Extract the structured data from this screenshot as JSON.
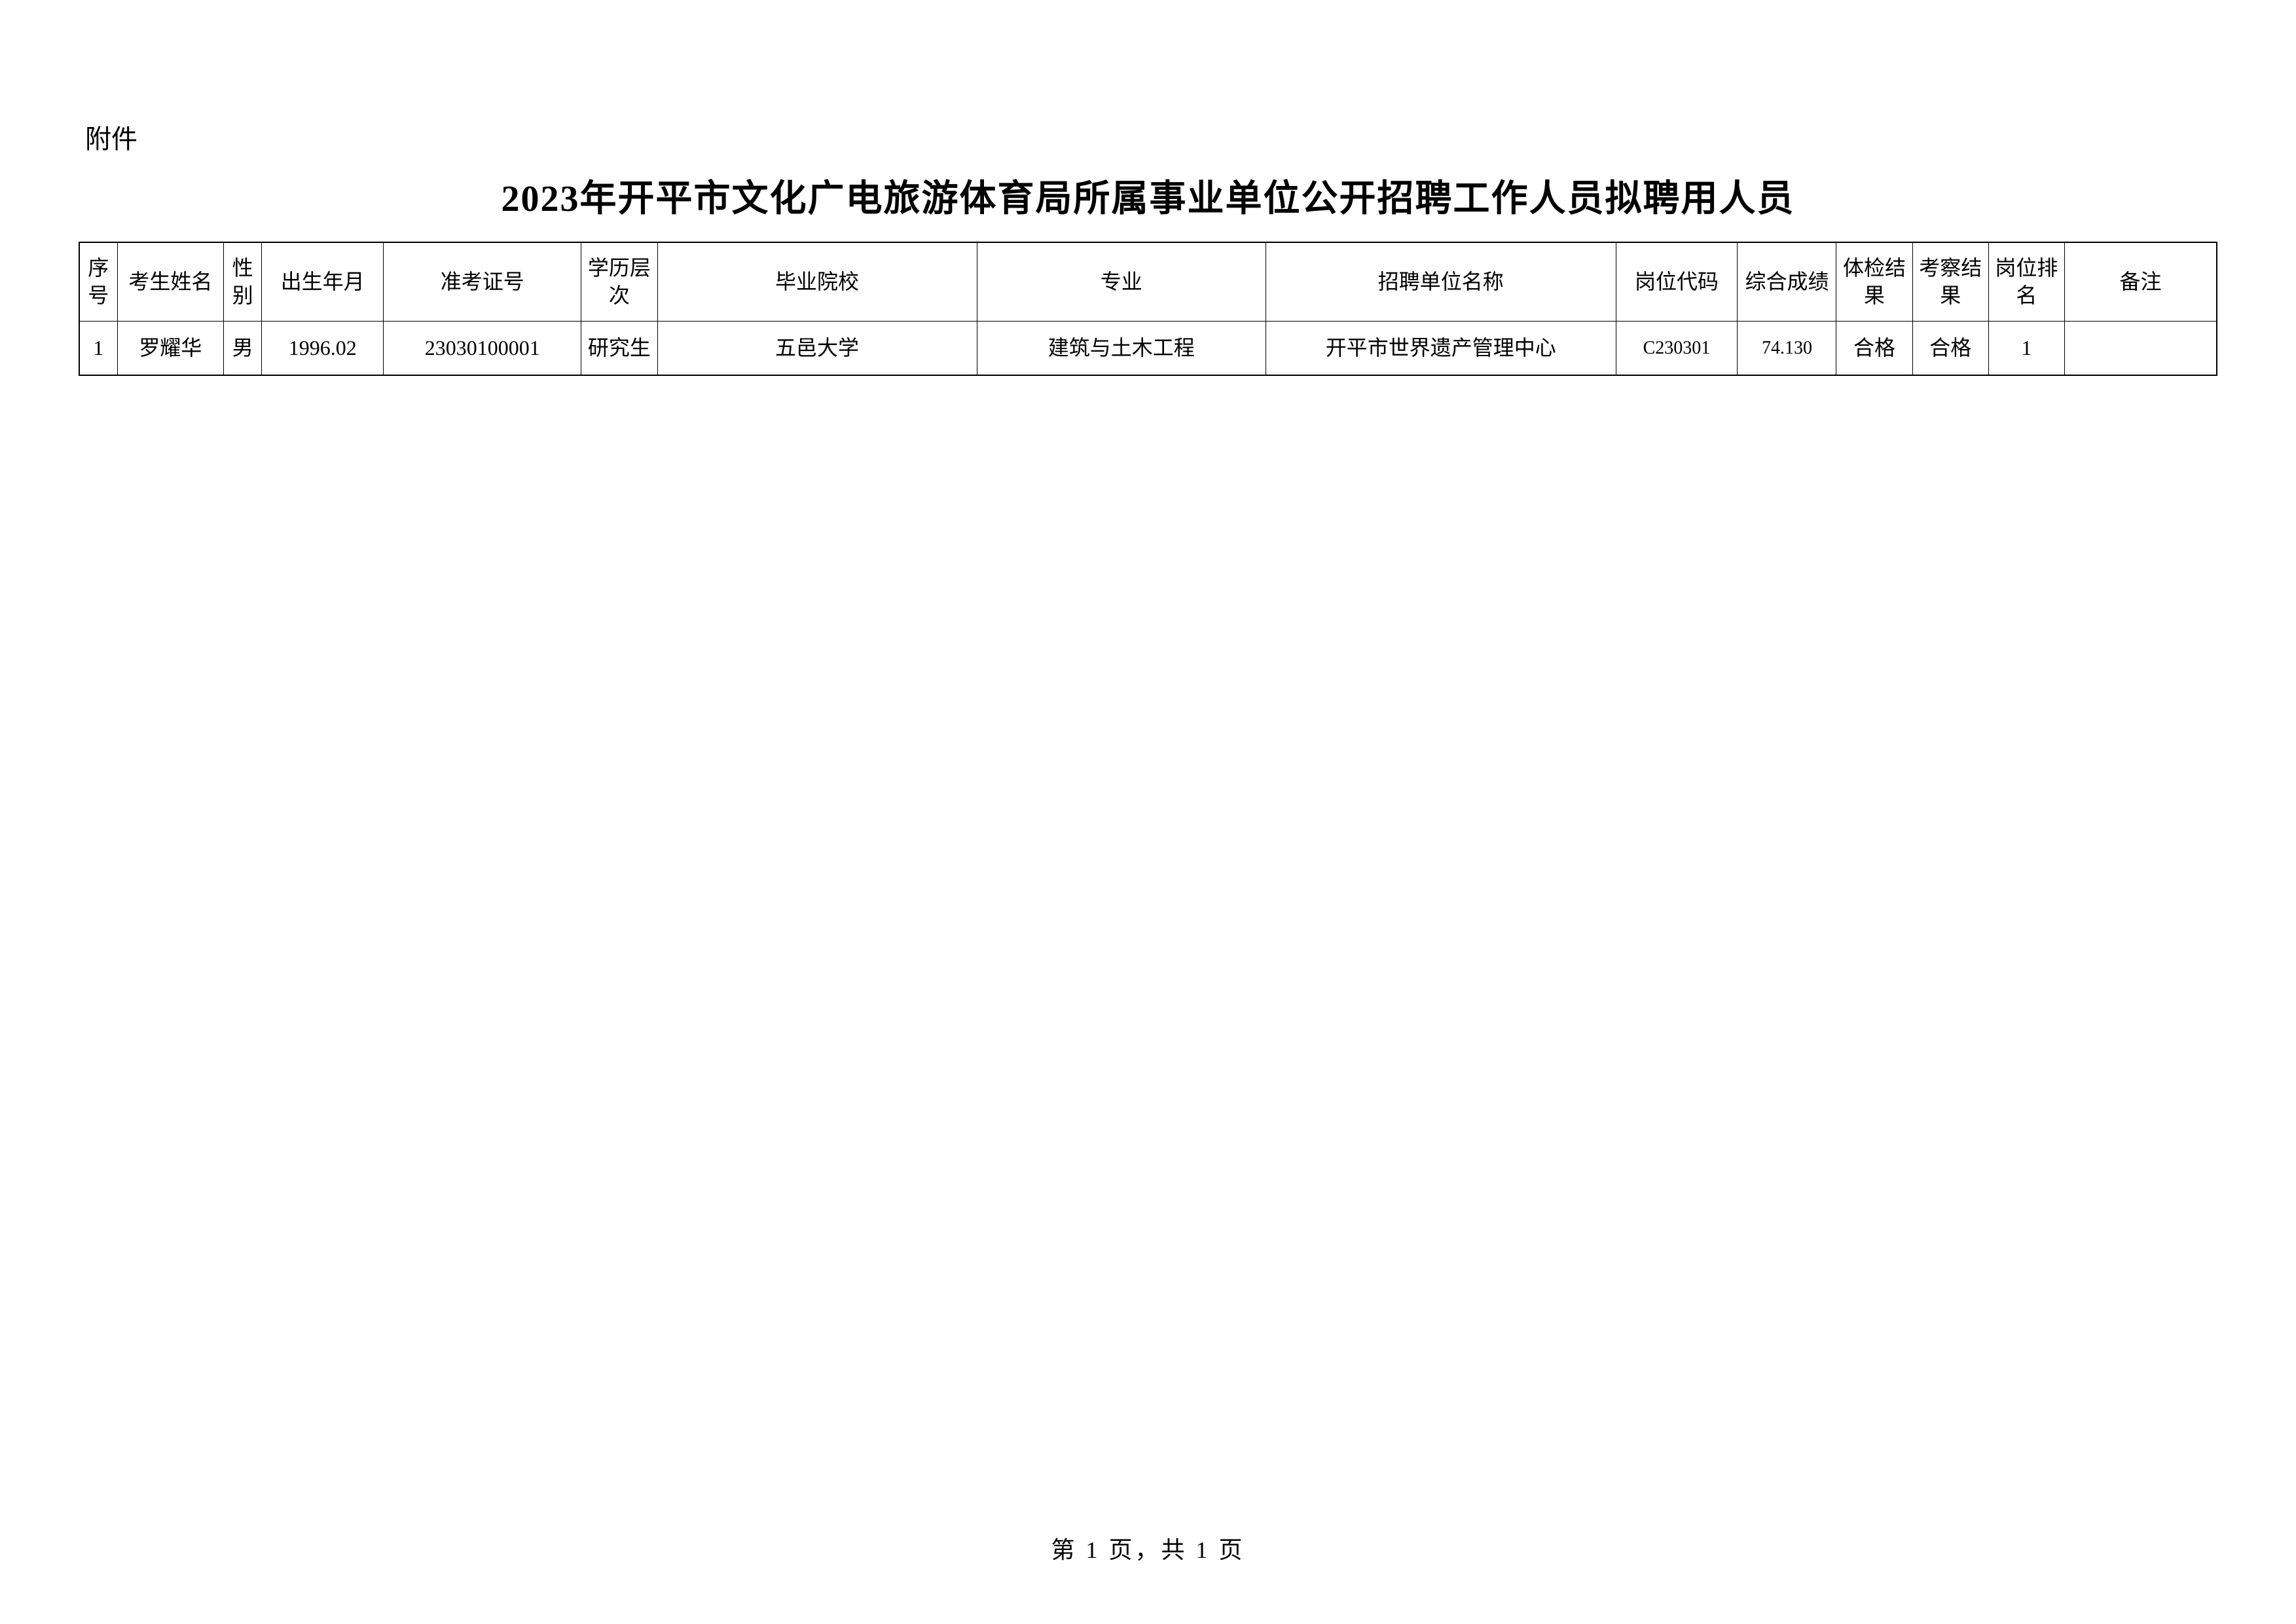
{
  "attachment_label": "附件",
  "title": "2023年开平市文化广电旅游体育局所属事业单位公开招聘工作人员拟聘用人员",
  "table": {
    "columns": [
      "序号",
      "考生姓名",
      "性别",
      "出生年月",
      "准考证号",
      "学历层次",
      "毕业院校",
      "专业",
      "招聘单位名称",
      "岗位代码",
      "综合成绩",
      "体检结果",
      "考察结果",
      "岗位排名",
      "备注"
    ],
    "rows": [
      {
        "seq": "1",
        "name": "罗耀华",
        "gender": "男",
        "birth": "1996.02",
        "exam_no": "23030100001",
        "education": "研究生",
        "school": "五邑大学",
        "major": "建筑与土木工程",
        "unit": "开平市世界遗产管理中心",
        "job_code": "C230301",
        "score": "74.130",
        "physical": "合格",
        "inspection": "合格",
        "rank": "1",
        "remark": ""
      }
    ],
    "border_color": "#000000",
    "background_color": "#ffffff",
    "header_fontsize": 32,
    "cell_fontsize": 32
  },
  "footer": "第 1 页，共 1 页"
}
